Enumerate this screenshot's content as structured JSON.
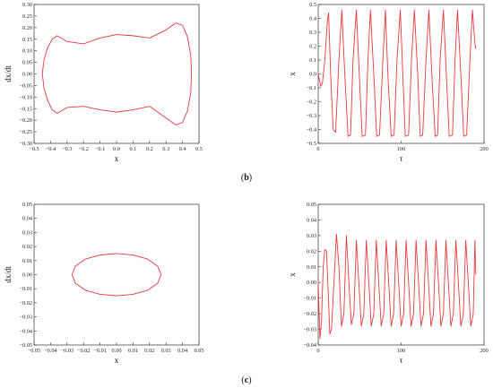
{
  "panels": [
    {
      "label_open": "(",
      "label_letter": "b",
      "label_close": ")"
    },
    {
      "label_open": "(",
      "label_letter": "c",
      "label_close": ")"
    }
  ],
  "chart_data": [
    {
      "id": "b-phase",
      "type": "line",
      "xlabel": "x",
      "ylabel": "dx/dt",
      "xlim": [
        -0.5,
        0.5
      ],
      "ylim": [
        -0.3,
        0.3
      ],
      "xticks": [
        "−0.5",
        "−0.4",
        "−0.3",
        "−0.2",
        "−0.1",
        "0.0",
        "0.1",
        "0.2",
        "0.3",
        "0.4",
        "0.5"
      ],
      "yticks": [
        "−0.30",
        "−0.25",
        "−0.20",
        "−0.15",
        "−0.10",
        "−0.05",
        "0.00",
        "0.05",
        "0.10",
        "0.15",
        "0.20",
        "0.25",
        "0.30"
      ],
      "xtickvals": [
        -0.5,
        -0.4,
        -0.3,
        -0.2,
        -0.1,
        0,
        0.1,
        0.2,
        0.3,
        0.4,
        0.5
      ],
      "ytickvals": [
        -0.3,
        -0.25,
        -0.2,
        -0.15,
        -0.1,
        -0.05,
        0,
        0.05,
        0.1,
        0.15,
        0.2,
        0.25,
        0.3
      ],
      "color": "#e8383b",
      "series": [
        {
          "x": [
            -0.45,
            -0.44,
            -0.42,
            -0.39,
            -0.36,
            -0.3,
            -0.2,
            -0.1,
            0,
            0.1,
            0.2,
            0.3,
            0.36,
            0.4,
            0.43,
            0.45,
            0.455,
            0.45,
            0.43,
            0.4,
            0.36,
            0.3,
            0.2,
            0.1,
            0,
            -0.1,
            -0.2,
            -0.3,
            -0.36,
            -0.39,
            -0.42,
            -0.44,
            -0.45
          ],
          "y": [
            0,
            0.06,
            0.11,
            0.15,
            0.165,
            0.14,
            0.13,
            0.155,
            0.17,
            0.165,
            0.155,
            0.19,
            0.22,
            0.21,
            0.16,
            0.08,
            0,
            -0.08,
            -0.16,
            -0.21,
            -0.22,
            -0.19,
            -0.14,
            -0.155,
            -0.165,
            -0.155,
            -0.14,
            -0.145,
            -0.17,
            -0.155,
            -0.11,
            -0.06,
            0
          ]
        }
      ]
    },
    {
      "id": "b-time",
      "type": "line",
      "xlabel": "τ",
      "ylabel": "x",
      "xlim": [
        0,
        200
      ],
      "ylim": [
        -0.5,
        0.5
      ],
      "xticks": [
        "0",
        "100",
        "200"
      ],
      "yticks": [
        "−0.5",
        "−0.4",
        "−0.3",
        "−0.2",
        "−0.1",
        "0.0",
        "0.1",
        "0.2",
        "0.3",
        "0.4",
        "0.5"
      ],
      "xtickvals": [
        0,
        100,
        200
      ],
      "ytickvals": [
        -0.5,
        -0.4,
        -0.3,
        -0.2,
        -0.1,
        0,
        0.1,
        0.2,
        0.3,
        0.4,
        0.5
      ],
      "color": "#e8383b",
      "series": [
        {
          "x": [
            0,
            3,
            5,
            8,
            11,
            12.5,
            15,
            18,
            21,
            25,
            28.5,
            32,
            36,
            39,
            42,
            46,
            49.5,
            53,
            57,
            60,
            63,
            67,
            70.5,
            74,
            78,
            81,
            84,
            88,
            91.5,
            95,
            99,
            102,
            105,
            109,
            112.5,
            116,
            120,
            123,
            126,
            130,
            133.5,
            137,
            141,
            144,
            147,
            151,
            154.5,
            158,
            162,
            165,
            168,
            172,
            175.5,
            179,
            183,
            186,
            189,
            190
          ],
          "y": [
            0,
            -0.09,
            -0.07,
            0.1,
            0.38,
            0.44,
            0.0,
            -0.4,
            -0.42,
            0.1,
            0.46,
            0.0,
            -0.45,
            -0.44,
            0.1,
            0.46,
            0.0,
            -0.45,
            -0.44,
            0.1,
            0.46,
            0.0,
            -0.45,
            -0.44,
            0.1,
            0.46,
            0.0,
            -0.45,
            -0.44,
            0.1,
            0.46,
            0.0,
            -0.45,
            -0.44,
            0.1,
            0.46,
            0.0,
            -0.45,
            -0.44,
            0.1,
            0.46,
            0.0,
            -0.45,
            -0.44,
            0.1,
            0.46,
            0.0,
            -0.45,
            -0.44,
            0.1,
            0.46,
            0.0,
            -0.45,
            -0.44,
            0.1,
            0.46,
            0.22,
            0.18
          ]
        }
      ]
    },
    {
      "id": "c-phase",
      "type": "line",
      "xlabel": "x",
      "ylabel": "dx/dt",
      "xlim": [
        -0.05,
        0.05
      ],
      "ylim": [
        -0.05,
        0.05
      ],
      "xticks": [
        "−0.05",
        "−0.04",
        "−0.03",
        "−0.02",
        "−0.01",
        "0.00",
        "0.01",
        "0.02",
        "0.03",
        "0.04",
        "0.05"
      ],
      "yticks": [
        "−0.05",
        "−0.04",
        "−0.03",
        "−0.02",
        "−0.01",
        "0.00",
        "0.01",
        "0.02",
        "0.03",
        "0.04",
        "0.05"
      ],
      "xtickvals": [
        -0.05,
        -0.04,
        -0.03,
        -0.02,
        -0.01,
        0,
        0.01,
        0.02,
        0.03,
        0.04,
        0.05
      ],
      "ytickvals": [
        -0.05,
        -0.04,
        -0.03,
        -0.02,
        -0.01,
        0,
        0.01,
        0.02,
        0.03,
        0.04,
        0.05
      ],
      "color": "#e8383b",
      "series": [
        {
          "x": [
            -0.027,
            -0.025,
            -0.019,
            -0.01,
            0,
            0.01,
            0.019,
            0.025,
            0.027,
            0.025,
            0.019,
            0.01,
            0,
            -0.01,
            -0.019,
            -0.025,
            -0.027
          ],
          "y": [
            0,
            0.006,
            0.011,
            0.014,
            0.015,
            0.014,
            0.011,
            0.006,
            0,
            -0.006,
            -0.011,
            -0.014,
            -0.015,
            -0.014,
            -0.011,
            -0.006,
            0
          ]
        }
      ]
    },
    {
      "id": "c-time",
      "type": "line",
      "xlabel": "τ",
      "ylabel": "x",
      "xlim": [
        0,
        200
      ],
      "ylim": [
        -0.04,
        0.05
      ],
      "xticks": [
        "0",
        "100",
        "200"
      ],
      "yticks": [
        "−0.04",
        "−0.03",
        "−0.02",
        "−0.01",
        "0.00",
        "0.01",
        "0.02",
        "0.03",
        "0.04",
        "0.05"
      ],
      "xtickvals": [
        0,
        100,
        200
      ],
      "ytickvals": [
        -0.04,
        -0.03,
        -0.02,
        -0.01,
        0,
        0.01,
        0.02,
        0.03,
        0.04,
        0.05
      ],
      "color": "#e8383b",
      "series": [
        {
          "x": [
            0,
            2,
            4,
            6,
            8,
            10,
            12,
            14,
            16,
            19,
            22,
            25,
            28,
            31,
            34,
            37,
            40,
            43,
            46,
            49,
            52,
            55,
            58,
            61,
            64,
            67,
            70,
            73,
            76,
            79,
            82,
            85,
            88,
            91,
            94,
            97,
            100,
            103,
            106,
            109,
            112,
            115,
            118,
            121,
            124,
            127,
            130,
            133,
            136,
            139,
            142,
            145,
            148,
            151,
            154,
            157,
            160,
            163,
            166,
            169,
            172,
            175,
            178,
            181,
            184,
            187,
            189,
            190
          ],
          "y": [
            0,
            -0.036,
            -0.025,
            0.01,
            0.021,
            0.02,
            -0.005,
            -0.033,
            -0.03,
            0.0,
            0.031,
            0.01,
            -0.028,
            -0.02,
            0.03,
            0.0,
            -0.027,
            -0.02,
            0.027,
            0.0,
            -0.028,
            -0.02,
            0.027,
            0.0,
            -0.028,
            -0.02,
            0.027,
            0.0,
            -0.028,
            -0.02,
            0.027,
            0.0,
            -0.028,
            -0.02,
            0.027,
            0.0,
            -0.028,
            -0.02,
            0.027,
            0.0,
            -0.028,
            -0.02,
            0.027,
            0.0,
            -0.028,
            -0.02,
            0.027,
            0.0,
            -0.028,
            -0.02,
            0.027,
            0.0,
            -0.028,
            -0.02,
            0.027,
            0.0,
            -0.028,
            -0.02,
            0.027,
            0.0,
            -0.028,
            -0.02,
            0.027,
            0.0,
            -0.028,
            -0.02,
            0.027,
            0.005
          ]
        }
      ]
    }
  ]
}
